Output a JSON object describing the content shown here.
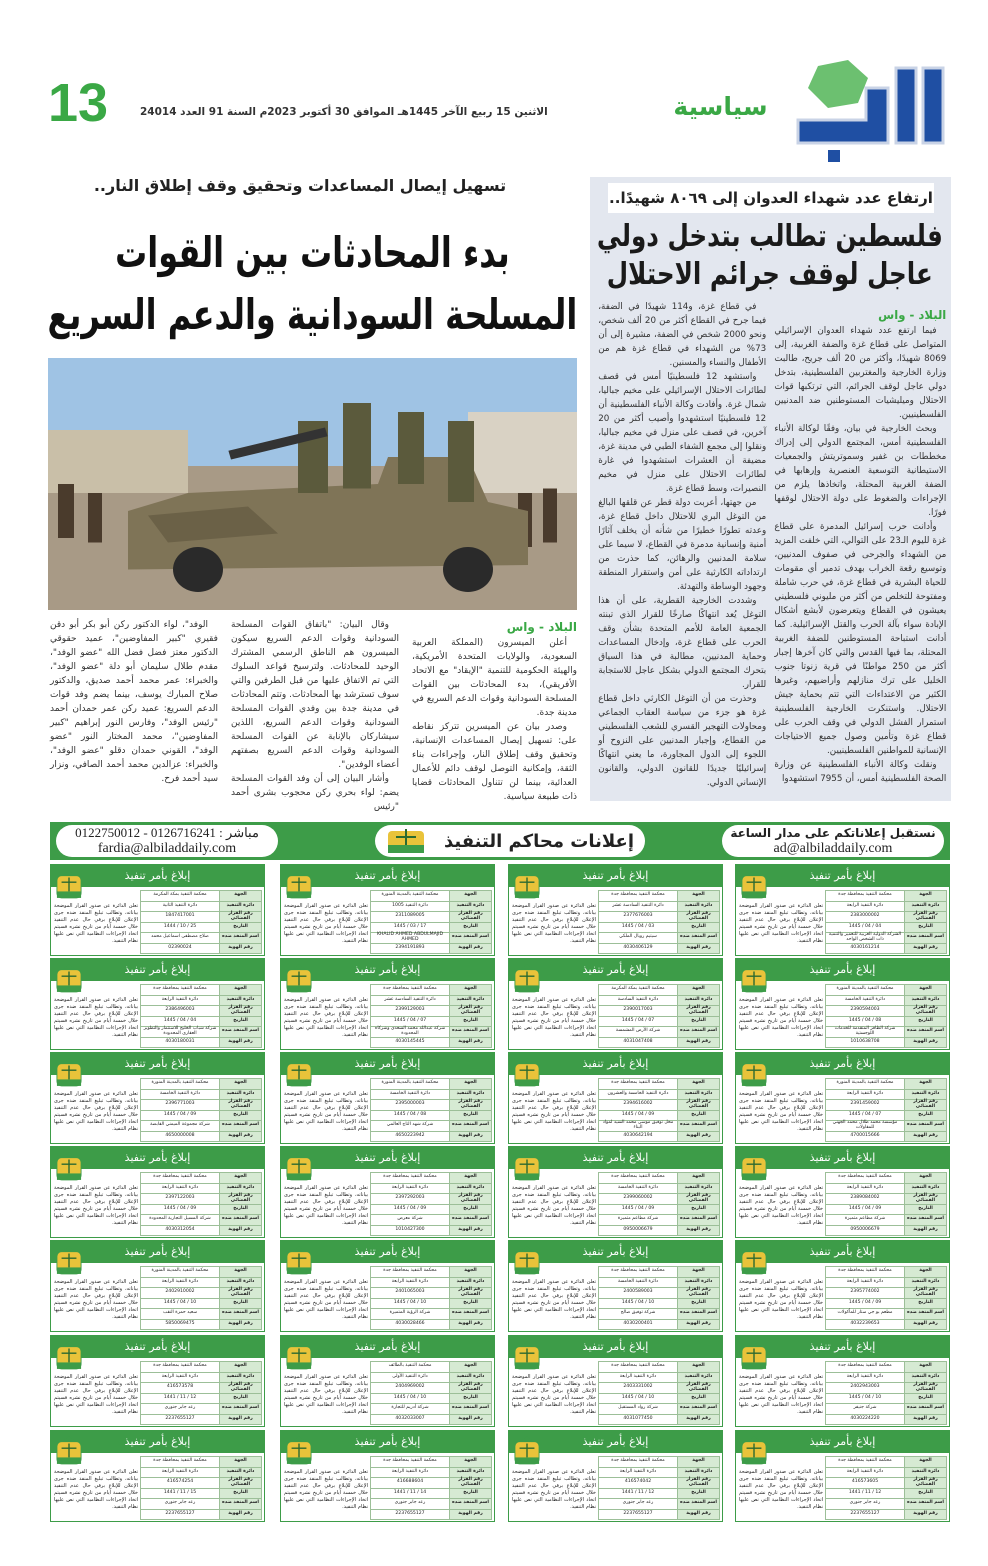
{
  "masthead": {
    "logo_text": "البلاد",
    "section": "سياسية",
    "dateline": "الاثنين 15 ربيع الآخر 1445هـ الموافق 30 أكتوبر 2023م السنة 91 العدد 24014",
    "page_number": "13",
    "colors": {
      "brand_blue": "#1f4fa3",
      "brand_green": "#3aa845"
    }
  },
  "right_article": {
    "kicker": "ارتفاع عدد شهداء العدوان إلى ٨٠٦٩ شهيدًا..",
    "headline": "فلسطين تطالب بتدخل دولي عاجل لوقف جرائم الاحتلال",
    "source": "البلاد - واس",
    "col1": [
      "فيما ارتفع عدد شهداء العدوان الإسرائيلي المتواصل على قطاع غزة والضفة الغربية، إلى 8069 شهيدًا، وأكثر من 20 ألف جريح، طالبت وزارة الخارجية والمغتربين الفلسطينية، بتدخل دولي عاجل لوقف الجرائم، التي ترتكبها قوات الاحتلال وميليشيات المستوطنين ضد المدنيين الفلسطينيين.",
      "وبحث الخارجية في بيان، وفقًا لوكالة الأنباء الفلسطينية أمس، المجتمع الدولي إلى إدراك مخططات بن غفير وسموتريتش والجمعيات الاستيطانية التوسعية العنصرية وإرهابها في الضفة الغربية المحتلة، واتخاذها يلزم من الإجراءات والضغوط على دولة الاحتلال لوقفها فورًا.",
      "وأدانت حرب إسرائيل المدمرة على قطاع غزة لليوم الـ23 على التوالي، التي خلفت المزيد من الشهداء والجرحى في صفوف المدنيين، وتوسيع رقعة الخراب بهدف تدمير أي مقومات للحياة البشرية في قطاع غزة، في حرب شاملة ومفتوحة للتخلص من أكثر من مليوني فلسطيني يعيشون في القطاع ويتعرضون لأبشع أشكال الإبادة سواء بآلة الحرب والقتل الإسرائيلية. كما أدانت استباحة المستوطنين للضفة الغربية المحتلة، بما فيها القدس والتي كان آخرها إجبار أكثر من 250 مواطنًا في قرية زنوتا جنوب الخليل على ترك منازلهم وأراضيهم، وغيرها الكثير من الاعتداءات التي تتم بحماية جيش الاحتلال. واستنكرت الخارجية الفلسطينية استمرار الفشل الدولي في وقف الحرب على قطاع غزة وتأمين وصول جميع الاحتياجات الإنسانية للمواطنين الفلسطينيين.",
      "ونقلت وكالة الأنباء الفلسطينية عن وزارة الصحة الفلسطينية أمس، أن 7955 استشهدوا"
    ],
    "col2": [
      "في قطاع غزة، و114 شهيدًا في الضفة، فيما جرح في القطاع أكثر من 20 ألف شخص، ونحو 2000 شخص في الضفة، مشيرة إلى أن 73% من الشهداء في قطاع غزة هم من الأطفال والنساء والمسنين.",
      "واستشهد 12 فلسطينيًا أمس في قصف لطائرات الاحتلال الإسرائيلي على مخيم جباليا، شمال غزة. وأفادت وكالة الأنباء الفلسطينية أن 12 فلسطينيًا استشهدوا وأصيب أكثر من 20 آخرين، في قصف على منزل في مخيم جباليا، ونقلوا إلى مجمع الشفاء الطبي في مدينة غزة، مضيفة أن العشرات استشهدوا في غارة لطائرات الاحتلال على منزل في مخيم النصيرات، وسط قطاع غزة.",
      "من جهتها، أعربت دولة قطر عن قلقها البالغ من التوغل البري للاحتلال داخل قطاع غزة، وعدته تطورًا خطيرًا من شأنه أن يخلف آثارًا أمنية وإنسانية مدمرة في القطاع، لا سيما على سلامة المدنيين والرهائن، كما حذرت من ارتداداته الكارثية على أمن واستقرار المنطقة وجهود الوساطة والتهدئة.",
      "وشددت الخارجية القطرية، على أن هذا التوغل يُعد انتهاكًا صارخًا للقرار الذي تبنته الجمعية العامة للأمم المتحدة بشأن وقف الحرب على قطاع غزة، وإدخال المساعدات وحماية المدنيين، مطالبة في هذا السياق بتحرك المجتمع الدولي بشكل عاجل للاستجابة للقرار.",
      "وحذرت من أن التوغل الكارثي داخل قطاع غزة هو جزء من سياسة العقاب الجماعي ومحاولات التهجير القسري للشعب الفلسطيني من القطاع، وإجبار المدنيين على النزوح أو اللجوء إلى الدول المجاورة، ما يعني انتهاكًا إسرائيليًا جديدًا للقانون الدولي، والقانون الإنساني الدولي."
    ]
  },
  "left_article": {
    "kicker": "تسهيل إيصال المساعدات وتحقيق وقف إطلاق النار..",
    "headline": "بدء المحادثات بين القوات المسلحة السودانية والدعم السريع",
    "source": "البلاد - واس",
    "col1": [
      "أعلن الميسرون (المملكة العربية السعودية، والولايات المتحدة الأمريكية، والهيئة الحكومية للتنمية \"الإيقاد\" مع الاتحاد الأفريقي)، بدء المحادثات بين القوات المسلحة السودانية وقوات الدعم السريع في مدينة جدة.",
      "وصدر بيان عن الميسرين تتركز نقاطه على: تسهيل إيصال المساعدات الإنسانية، وتحقيق وقف إطلاق النار، وإجراءات بناء الثقة، وإمكانية التوصل لوقف دائم للأعمال العدائية، بينما لن تتناول المحادثات قضايا ذات طبيعة سياسية."
    ],
    "col2": [
      "وقال البيان: \"باتفاق القوات المسلحة السودانية وقوات الدعم السريع سيكون الميسرون هم الناطق الرسمي المشترك الوحيد للمحادثات. ولترسيخ قواعد السلوك التي تم الاتفاق عليها من قبل الطرفين والتي سوف تسترشد بها المحادثات. وتتم المحادثات في مدينة جدة بين وفدي القوات المسلحة السودانية وقوات الدعم السريع، اللذين سيشاركان بالإنابة عن القوات المسلحة السودانية وقوات الدعم السريع بصفتهم أعضاء الوفدين\".",
      "وأشار البيان إلى أن وفد القوات المسلحة يضم: لواء بحري ركن محجوب بشرى أحمد \"رئيس"
    ],
    "col3": [
      "الوفد\"، لواء الدكتور ركن أبو بكر أبو دقن فقيري \"كبير المفاوضين\"، عميد حقوقي الدكتور معتز فضل فضل الله \"عضو الوفد\"، مقدم طلال سليمان أبو دلة \"عضو الوفد\"، والخبراء: عمر محمد أحمد صديق، والدكتور صلاح المبارك يوسف، بينما يضم وفد قوات الدعم السريع: عميد ركن عمر حمدان أحمد \"رئيس الوفد\"، وفارس النور إبراهيم \"كبير المفاوضين\"، محمد المختار النور \"عضو الوفد\"، القوني حمدان دقلو \"عضو الوفد\"، والخبراء: عزالدين محمد أحمد الصافي، ونزار سيد أحمد فرح."
    ]
  },
  "ads_banner": {
    "right_line1": "نستقبل إعلاناتكم على مدار الساعة",
    "right_email": "ad@albiladdaily.com",
    "title": "إعلانات محاكم التنفيذ",
    "left_phone": "مباشر : 0126716241 - 0122750012",
    "left_email": "fardia@albiladdaily.com"
  },
  "ad_template": {
    "title": "إبلاغ بأمر تنفيذ",
    "labels": [
      "الجهة",
      "دائرة التنفيذ",
      "رقم القرار القضائي",
      "التاريخ",
      "اسم المنفذ ضده",
      "رقم الهوية"
    ],
    "notice": "تعلن الدائرة عن صدور القرار الموضحة بياناته، وتطالب تبليغ المنفذ ضده جرى الإعلان للإبلاغ برقي حال عدم التنفيذ خلال خمسة أيام من تاريخ نشره فسيتم اتخاذ الإجراءات النظامية التي نص عليها نظام التنفيذ."
  },
  "ads": [
    [
      "محكمة التنفيذ بمحافظة جدة",
      "دائرة التنفيذ الرابعة",
      "2383000002",
      "04 / 04 / 1445",
      "الشركة الدولية العربية للتعمير والتنمية ذات الشخص الواحد",
      "4030161214"
    ],
    [
      "محكمة التنفيذ بمحافظة جدة",
      "دائرة التنفيذ السادسة عشر",
      "2377676003",
      "03 / 04 / 1445",
      "سيتيم رويال الملكي",
      "4030406129"
    ],
    [
      "محكمة التنفيذ بالمدينة المنورة",
      "دائرة التنفيذ 1005",
      "2311089005",
      "17 / 03 / 1445",
      "KHALID AHMED ABDULMAJID AHMED",
      "2394191893"
    ],
    [
      "محكمة التنفيذ بمكة المكرمة",
      "دائرة التنفيذ الثانية",
      "1847417001",
      "25 / 10 / 1444",
      "صلاح مصطفى اسماعيل محمد",
      "02390024"
    ],
    [
      "محكمة التنفيذ بالمدينة المنورة",
      "دائرة التنفيذ الخامسة",
      "2390594003",
      "08 / 04 / 1445",
      "شركة الظافر المتقدمة للخدمات اللوجستية",
      "1010638708"
    ],
    [
      "محكمة التنفيذ بمكة المكرمة",
      "دائرة التنفيذ السادسة",
      "2390017003",
      "07 / 04 / 1445",
      "شركة الأرض المشمسة",
      "4031047408"
    ],
    [
      "محكمة التنفيذ بمحافظة جدة",
      "دائرة التنفيذ السادسة عشر",
      "2399129003",
      "07 / 04 / 1445",
      "شركة عبدالله محمد السعدي وشركاه المحدودة",
      "4030145445"
    ],
    [
      "محكمة التنفيذ بمحافظة جدة",
      "دائرة التنفيذ الرابعة",
      "2386496003",
      "04 / 04 / 1445",
      "شركة شباب الخليج للاستثمار والتطوير العقاري المحدودة",
      "4030180031"
    ],
    [
      "محكمة التنفيذ بالمدينة المنورة",
      "دائرة التنفيذ الرابعة",
      "2391459002",
      "07 / 04 / 1445",
      "مؤسسة محمد طلال محمد الجهني للمقاولات",
      "4700015666"
    ],
    [
      "محكمة التنفيذ بمحافظة جدة",
      "دائرة التنفيذ الخامسة والعشرون",
      "2394616002",
      "09 / 04 / 1445",
      "محل توفيق موسى محمد السيد لمواد البناء",
      "4030642194"
    ],
    [
      "محكمة التنفيذ بالمدينة المنورة",
      "دائرة التنفيذ الخامسة",
      "2395000003",
      "08 / 04 / 1445",
      "شركة شهد التاج العالمي",
      "4650223942"
    ],
    [
      "محكمة التنفيذ بالمدينة المنورة",
      "دائرة التنفيذ الخامسة",
      "2396771003",
      "09 / 04 / 1445",
      "شركة مجموعة الميمني القابضة",
      "4650000008"
    ],
    [
      "محكمة التنفيذ بمحافظة جدة",
      "دائرة التنفيذ الرابعة",
      "2389084002",
      "09 / 04 / 1445",
      "شركة مطاعم متميزة",
      "0950006679"
    ],
    [
      "محكمة التنفيذ بمحافظة جدة",
      "دائرة التنفيذ الخامسة",
      "2399060002",
      "09 / 04 / 1445",
      "شركة مطاعم متميزة",
      "0950006679"
    ],
    [
      "محكمة التنفيذ بمحافظة جدة",
      "دائرة التنفيذ الرابعة",
      "2397292003",
      "09 / 04 / 1445",
      "شركة معرض",
      "1010427300"
    ],
    [
      "محكمة التنفيذ بمحافظة جدة",
      "دائرة التنفيذ الرابعة",
      "2397122003",
      "09 / 04 / 1445",
      "شركة المسيل التجارية المحدودة",
      "4030312054"
    ],
    [
      "محكمة التنفيذ بمحافظة جدة",
      "دائرة التنفيذ الرابعة",
      "2395774002",
      "09 / 04 / 1445",
      "مطعم بو جي ستار للمأكولات",
      "4032239653"
    ],
    [
      "محكمة التنفيذ بمحافظة جدة",
      "دائرة التنفيذ الخامسة",
      "2400589003",
      "10 / 04 / 1445",
      "شركة توفيق صالح",
      "4030200401"
    ],
    [
      "محكمة التنفيذ بمحافظة جدة",
      "دائرة التنفيذ الرابعة",
      "2401065003",
      "10 / 04 / 1445",
      "شركة الرؤية المتميزة",
      "4030028466"
    ],
    [
      "محكمة التنفيذ بالمدينة المنورة",
      "دائرة التنفيذ الرابعة",
      "2402910002",
      "10 / 04 / 1445",
      "سعيد حمزة النقب",
      "5850069475"
    ],
    [
      "محكمة التنفيذ بمحافظة جدة",
      "دائرة التنفيذ الرابعة",
      "2402943003",
      "10 / 04 / 1445",
      "شركة جنيفر",
      "4030224220"
    ],
    [
      "محكمة التنفيذ بمحافظة جدة",
      "دائرة التنفيذ الرابعة",
      "2403331002",
      "10 / 04 / 1445",
      "شركة رواد المستقبل",
      "4031077450"
    ],
    [
      "محكمة التنفيذ بالطائف",
      "دائرة التنفيذ الأولى",
      "2404969002",
      "10 / 04 / 1445",
      "شركة أدريم للتجارة",
      "4032033007"
    ],
    [
      "محكمة التنفيذ بمحافظة جدة",
      "دائرة التنفيذ الرابعة",
      "416573578",
      "12 / 11 / 1441",
      "رعد جابر جنوري",
      "2237655127"
    ],
    [
      "محكمة التنفيذ بمحافظة جدة",
      "دائرة التنفيذ الرابعة",
      "416573605",
      "12 / 11 / 1441",
      "رعد جابر جنوري",
      "2237655127"
    ],
    [
      "محكمة التنفيذ بمحافظة جدة",
      "دائرة التنفيذ الرابعة",
      "416574042",
      "12 / 11 / 1441",
      "رعد جابر جنوري",
      "2237655127"
    ],
    [
      "محكمة التنفيذ بمحافظة جدة",
      "دائرة التنفيذ الرابعة",
      "416688604",
      "14 / 11 / 1441",
      "رعد جابر جنوري",
      "2237655127"
    ],
    [
      "محكمة التنفيذ بمحافظة جدة",
      "دائرة التنفيذ الرابعة",
      "416574254",
      "15 / 11 / 1441",
      "رعد جابر جنوري",
      "2237655127"
    ]
  ]
}
